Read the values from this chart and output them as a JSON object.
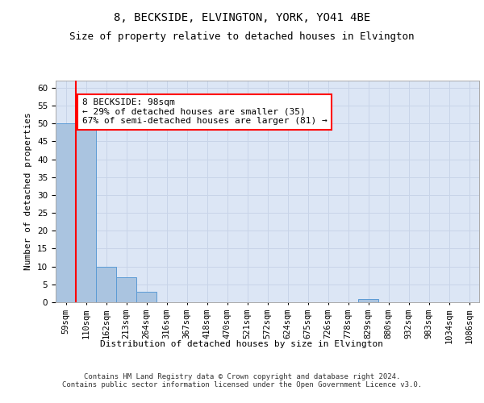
{
  "title1": "8, BECKSIDE, ELVINGTON, YORK, YO41 4BE",
  "title2": "Size of property relative to detached houses in Elvington",
  "xlabel": "Distribution of detached houses by size in Elvington",
  "ylabel": "Number of detached properties",
  "bin_labels": [
    "59sqm",
    "110sqm",
    "162sqm",
    "213sqm",
    "264sqm",
    "316sqm",
    "367sqm",
    "418sqm",
    "470sqm",
    "521sqm",
    "572sqm",
    "624sqm",
    "675sqm",
    "726sqm",
    "778sqm",
    "829sqm",
    "880sqm",
    "932sqm",
    "983sqm",
    "1034sqm",
    "1086sqm"
  ],
  "bar_heights": [
    50,
    49,
    10,
    7,
    3,
    0,
    0,
    0,
    0,
    0,
    0,
    0,
    0,
    0,
    0,
    1,
    0,
    0,
    0,
    0,
    0
  ],
  "bar_color": "#aac4e0",
  "bar_edge_color": "#5b9bd5",
  "grid_color": "#c8d4e8",
  "annotation_text": "8 BECKSIDE: 98sqm\n← 29% of detached houses are smaller (35)\n67% of semi-detached houses are larger (81) →",
  "annotation_box_color": "white",
  "annotation_box_edge_color": "red",
  "vline_color": "red",
  "ylim": [
    0,
    62
  ],
  "yticks": [
    0,
    5,
    10,
    15,
    20,
    25,
    30,
    35,
    40,
    45,
    50,
    55,
    60
  ],
  "footer_text": "Contains HM Land Registry data © Crown copyright and database right 2024.\nContains public sector information licensed under the Open Government Licence v3.0.",
  "bg_color": "#dce6f5",
  "title1_fontsize": 10,
  "title2_fontsize": 9,
  "axis_label_fontsize": 8,
  "tick_fontsize": 7.5,
  "annotation_fontsize": 8,
  "footer_fontsize": 6.5
}
